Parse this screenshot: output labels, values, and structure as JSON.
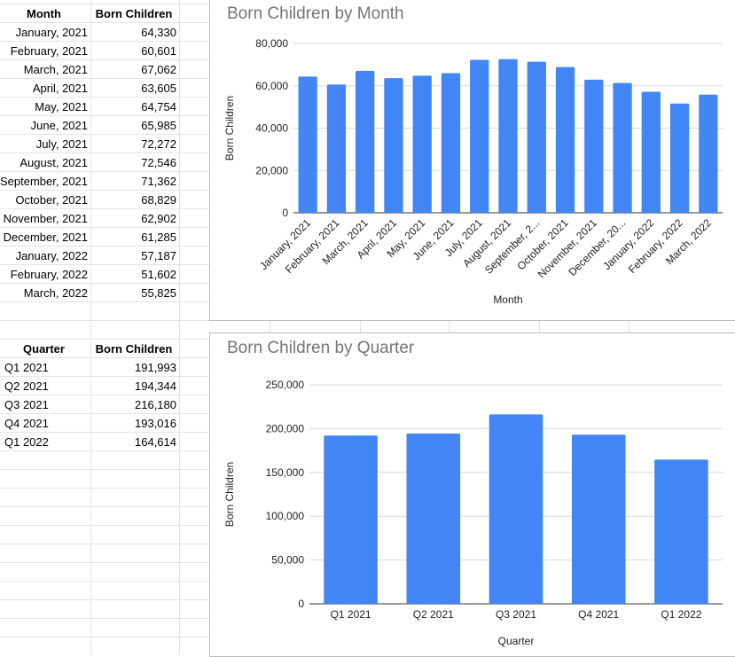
{
  "monthly_table": {
    "headers": [
      "Month",
      "Born Children"
    ],
    "rows": [
      [
        "January, 2021",
        "64,330"
      ],
      [
        "February, 2021",
        "60,601"
      ],
      [
        "March, 2021",
        "67,062"
      ],
      [
        "April, 2021",
        "63,605"
      ],
      [
        "May, 2021",
        "64,754"
      ],
      [
        "June, 2021",
        "65,985"
      ],
      [
        "July, 2021",
        "72,272"
      ],
      [
        "August, 2021",
        "72,546"
      ],
      [
        "September, 2021",
        "71,362"
      ],
      [
        "October, 2021",
        "68,829"
      ],
      [
        "November, 2021",
        "62,902"
      ],
      [
        "December, 2021",
        "61,285"
      ],
      [
        "January, 2022",
        "57,187"
      ],
      [
        "February, 2022",
        "51,602"
      ],
      [
        "March, 2022",
        "55,825"
      ]
    ]
  },
  "quarterly_table": {
    "headers": [
      "Quarter",
      "Born Children"
    ],
    "rows": [
      [
        "Q1 2021",
        "191,993"
      ],
      [
        "Q2 2021",
        "194,344"
      ],
      [
        "Q3 2021",
        "216,180"
      ],
      [
        "Q4 2021",
        "193,016"
      ],
      [
        "Q1 2022",
        "164,614"
      ]
    ]
  },
  "chart_data": [
    {
      "type": "bar",
      "title": "Born Children by Month",
      "xlabel": "Month",
      "ylabel": "Born Children",
      "categories": [
        "January, 2021",
        "February, 2021",
        "March, 2021",
        "April, 2021",
        "May, 2021",
        "June, 2021",
        "July, 2021",
        "August, 2021",
        "September, 2...",
        "October, 2021",
        "November, 2021",
        "December, 20...",
        "January, 2022",
        "February, 2022",
        "March, 2022"
      ],
      "values": [
        64330,
        60601,
        67062,
        63605,
        64754,
        65985,
        72272,
        72546,
        71362,
        68829,
        62902,
        61285,
        57187,
        51602,
        55825
      ],
      "ylim": [
        0,
        80000
      ],
      "yticks": [
        0,
        20000,
        40000,
        60000,
        80000
      ],
      "ytick_labels": [
        "0",
        "20,000",
        "40,000",
        "60,000",
        "80,000"
      ],
      "grid": true,
      "color": "#4285f4"
    },
    {
      "type": "bar",
      "title": "Born Children by Quarter",
      "xlabel": "Quarter",
      "ylabel": "Born Children",
      "categories": [
        "Q1 2021",
        "Q2 2021",
        "Q3 2021",
        "Q4 2021",
        "Q1 2022"
      ],
      "values": [
        191993,
        194344,
        216180,
        193016,
        164614
      ],
      "ylim": [
        0,
        250000
      ],
      "yticks": [
        0,
        50000,
        100000,
        150000,
        200000,
        250000
      ],
      "ytick_labels": [
        "0",
        "50,000",
        "100,000",
        "150,000",
        "200,000",
        "250,000"
      ],
      "grid": true,
      "color": "#4285f4"
    }
  ]
}
